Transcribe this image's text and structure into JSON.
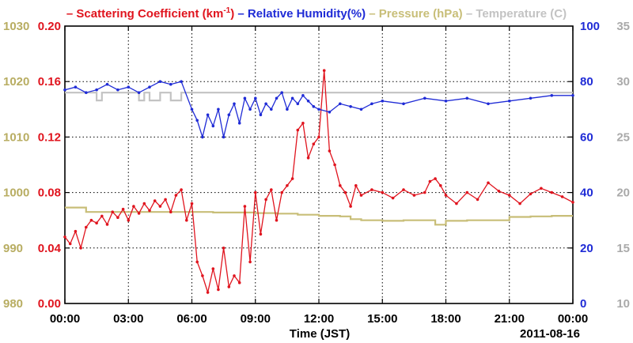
{
  "chart_data": {
    "type": "line",
    "legend": [
      {
        "prefix": "–",
        "label": "Scattering Coefficient (km",
        "sup": "-1",
        "suffix": ")",
        "color": "#e0141e"
      },
      {
        "prefix": "–",
        "label": "Relative Humidity(%)",
        "sup": "",
        "suffix": "",
        "color": "#1f2bd6"
      },
      {
        "prefix": "–",
        "label": "Pressure (hPa)",
        "sup": "",
        "suffix": "",
        "color": "#c8be78"
      },
      {
        "prefix": "–",
        "label": "Temperature (C)",
        "sup": "",
        "suffix": "",
        "color": "#c3c3c3"
      }
    ],
    "xlabel": "Time (JST)",
    "date_label": "2011-08-16",
    "x_ticks": [
      "00:00",
      "03:00",
      "06:00",
      "09:00",
      "12:00",
      "15:00",
      "18:00",
      "21:00",
      "00:00"
    ],
    "xlim_hours": [
      0,
      24
    ],
    "grid": true,
    "axes": {
      "pressure": {
        "range": [
          980,
          1030
        ],
        "ticks": [
          "980",
          "990",
          "1000",
          "1010",
          "1020",
          "1030"
        ],
        "color": "#b8ad62"
      },
      "scattering": {
        "range": [
          0.0,
          0.2
        ],
        "ticks": [
          "0.00",
          "0.04",
          "0.08",
          "0.12",
          "0.16",
          "0.20"
        ],
        "color": "#e0141e"
      },
      "humidity": {
        "range": [
          0,
          100
        ],
        "ticks": [
          "0",
          "20",
          "40",
          "60",
          "80",
          "100"
        ],
        "color": "#1f2bd6"
      },
      "temperature": {
        "range": [
          10,
          35
        ],
        "ticks": [
          "10",
          "15",
          "20",
          "25",
          "30",
          "35"
        ],
        "color": "#aaaaaa"
      }
    },
    "series": [
      {
        "name": "Scattering Coefficient",
        "axis": "scattering",
        "color": "#e0141e",
        "markers": true,
        "x": [
          0,
          0.25,
          0.5,
          0.75,
          1,
          1.25,
          1.5,
          1.75,
          2,
          2.25,
          2.5,
          2.75,
          3,
          3.25,
          3.5,
          3.75,
          4,
          4.25,
          4.5,
          4.75,
          5,
          5.25,
          5.5,
          5.75,
          6,
          6.25,
          6.5,
          6.75,
          7,
          7.25,
          7.5,
          7.75,
          8,
          8.25,
          8.5,
          8.75,
          9,
          9.25,
          9.5,
          9.75,
          10,
          10.25,
          10.5,
          10.75,
          11,
          11.25,
          11.5,
          11.75,
          12,
          12.25,
          12.5,
          12.75,
          13,
          13.25,
          13.5,
          13.75,
          14,
          14.5,
          15,
          15.5,
          16,
          16.5,
          17,
          17.25,
          17.5,
          17.75,
          18,
          18.5,
          19,
          19.5,
          20,
          20.5,
          21,
          21.5,
          22,
          22.5,
          23,
          23.5,
          24
        ],
        "y": [
          0.048,
          0.043,
          0.052,
          0.04,
          0.055,
          0.06,
          0.058,
          0.063,
          0.057,
          0.066,
          0.062,
          0.068,
          0.06,
          0.07,
          0.065,
          0.072,
          0.067,
          0.074,
          0.07,
          0.075,
          0.066,
          0.078,
          0.082,
          0.06,
          0.072,
          0.03,
          0.02,
          0.008,
          0.025,
          0.01,
          0.04,
          0.012,
          0.02,
          0.015,
          0.07,
          0.03,
          0.08,
          0.05,
          0.075,
          0.082,
          0.06,
          0.08,
          0.085,
          0.09,
          0.125,
          0.13,
          0.105,
          0.115,
          0.12,
          0.168,
          0.11,
          0.1,
          0.085,
          0.08,
          0.07,
          0.085,
          0.078,
          0.082,
          0.08,
          0.076,
          0.082,
          0.078,
          0.08,
          0.088,
          0.09,
          0.085,
          0.078,
          0.072,
          0.08,
          0.075,
          0.087,
          0.081,
          0.078,
          0.072,
          0.079,
          0.083,
          0.08,
          0.077,
          0.073
        ]
      },
      {
        "name": "Relative Humidity",
        "axis": "humidity",
        "color": "#1f2bd6",
        "markers": true,
        "x": [
          0,
          0.5,
          1,
          1.5,
          2,
          2.5,
          3,
          3.5,
          4,
          4.5,
          5,
          5.5,
          6,
          6.25,
          6.5,
          6.75,
          7,
          7.25,
          7.5,
          7.75,
          8,
          8.25,
          8.5,
          8.75,
          9,
          9.25,
          9.5,
          9.75,
          10,
          10.25,
          10.5,
          10.75,
          11,
          11.25,
          11.5,
          11.75,
          12,
          12.5,
          13,
          13.5,
          14,
          14.5,
          15,
          16,
          17,
          18,
          19,
          20,
          21,
          22,
          23,
          24
        ],
        "y": [
          77,
          78,
          76,
          77,
          79,
          77,
          78,
          76,
          78,
          80,
          79,
          80,
          70,
          66,
          60,
          68,
          64,
          70,
          60,
          68,
          72,
          65,
          74,
          70,
          74,
          68,
          72,
          70,
          74,
          76,
          70,
          74,
          72,
          75,
          73,
          71,
          70,
          69,
          72,
          71,
          70,
          72,
          73,
          72,
          74,
          73,
          74,
          72,
          73,
          74,
          75,
          75
        ]
      },
      {
        "name": "Pressure",
        "axis": "pressure",
        "color": "#c8be78",
        "markers": false,
        "x": [
          0,
          1,
          2,
          3,
          4,
          5,
          6,
          7,
          8,
          9,
          10,
          11,
          12,
          13,
          13.5,
          14,
          15,
          16,
          17,
          17.5,
          18,
          19,
          20,
          21,
          22,
          23,
          24
        ],
        "y": [
          997.3,
          996.5,
          996.5,
          996.5,
          996.5,
          996.5,
          996.5,
          996.4,
          996.4,
          996.3,
          996.2,
          996.0,
          995.8,
          995.7,
          995.2,
          995.0,
          994.9,
          995.0,
          995.0,
          994.2,
          994.9,
          995.0,
          995.0,
          995.6,
          995.7,
          995.8,
          995.8
        ]
      },
      {
        "name": "Temperature",
        "axis": "temperature",
        "color": "#c3c3c3",
        "markers": false,
        "x": [
          0,
          1,
          1.5,
          1.75,
          2,
          3,
          3.5,
          3.75,
          4,
          4.5,
          5,
          5.5,
          6,
          8,
          10,
          12,
          14,
          16,
          18,
          20,
          22,
          24
        ],
        "y": [
          29.0,
          29.0,
          28.3,
          29.0,
          29.0,
          29.0,
          28.3,
          29.0,
          28.3,
          29.0,
          28.3,
          29.0,
          29.0,
          29.0,
          29.0,
          29.0,
          29.0,
          29.0,
          29.0,
          29.0,
          29.0,
          29.0
        ]
      }
    ]
  }
}
